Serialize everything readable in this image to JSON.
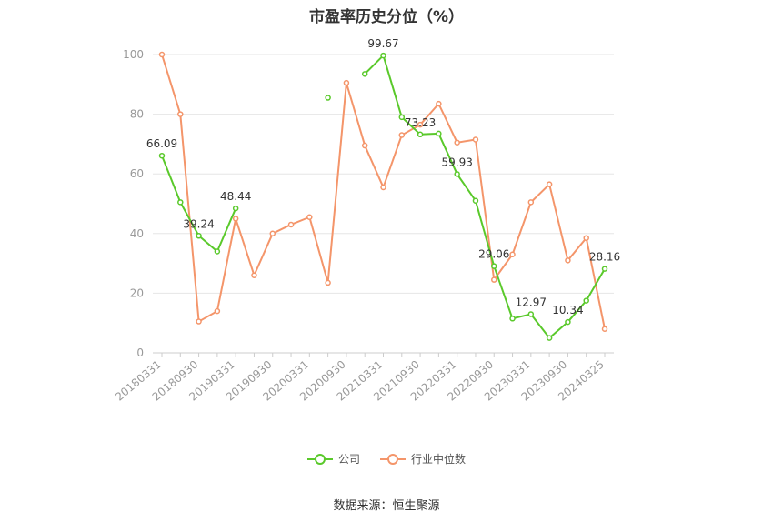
{
  "chart_data": {
    "type": "line",
    "title": "市盈率历史分位（%）",
    "xlabel": "",
    "ylabel": "",
    "ylim": [
      0,
      100
    ],
    "yticks": [
      0,
      20,
      40,
      60,
      80,
      100
    ],
    "grid": true,
    "legend_position": "bottom",
    "x": [
      "20180331",
      "20180630",
      "20180930",
      "20181231",
      "20190331",
      "20190630",
      "20190930",
      "20191231",
      "20200331",
      "20200630",
      "20200930",
      "20201231",
      "20210331",
      "20210630",
      "20210930",
      "20211231",
      "20220331",
      "20220630",
      "20220930",
      "20221231",
      "20230331",
      "20230630",
      "20230930",
      "20231231",
      "20240325"
    ],
    "xtick_labels": [
      "20180331",
      "20180930",
      "20190331",
      "20190930",
      "20200331",
      "20200930",
      "20210331",
      "20210930",
      "20220331",
      "20220930",
      "20230331",
      "20230930",
      "20240325"
    ],
    "series": [
      {
        "name": "公司",
        "color": "#5ac92b",
        "values": [
          66.09,
          50.5,
          39.24,
          34.0,
          48.44,
          null,
          null,
          null,
          null,
          85.5,
          null,
          93.5,
          99.67,
          79.0,
          73.23,
          73.5,
          59.93,
          51.0,
          29.06,
          11.5,
          12.97,
          5.0,
          10.34,
          17.5,
          28.16
        ],
        "labels": [
          {
            "index": 0,
            "text": "66.09"
          },
          {
            "index": 2,
            "text": "39.24"
          },
          {
            "index": 4,
            "text": "48.44"
          },
          {
            "index": 12,
            "text": "99.67"
          },
          {
            "index": 14,
            "text": "73.23"
          },
          {
            "index": 16,
            "text": "59.93"
          },
          {
            "index": 18,
            "text": "29.06"
          },
          {
            "index": 20,
            "text": "12.97"
          },
          {
            "index": 22,
            "text": "10.34"
          },
          {
            "index": 24,
            "text": "28.16"
          }
        ]
      },
      {
        "name": "行业中位数",
        "color": "#f4956a",
        "values": [
          100,
          80,
          10.5,
          14.0,
          45.0,
          26.0,
          40.0,
          43.0,
          45.5,
          23.5,
          90.5,
          69.5,
          55.5,
          73.0,
          76.5,
          83.5,
          70.5,
          71.5,
          24.5,
          33.0,
          50.5,
          56.5,
          31.0,
          38.5,
          8.0
        ]
      }
    ]
  },
  "source_text": "数据来源：恒生聚源"
}
